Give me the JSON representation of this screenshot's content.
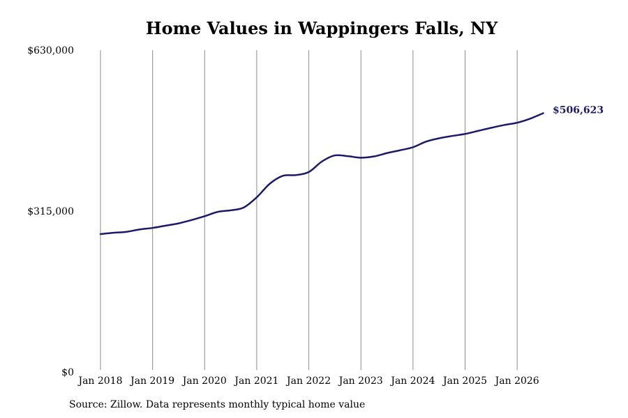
{
  "chart_data": {
    "type": "line",
    "title": "Home Values in Wappingers Falls, NY",
    "source": "Source: Zillow. Data represents monthly typical home value",
    "xlabel": "",
    "ylabel": "",
    "ylim": [
      0,
      630000
    ],
    "xlim": [
      "2018-01",
      "2026-07"
    ],
    "y_ticks": [
      {
        "value": 0,
        "label": "$0"
      },
      {
        "value": 315000,
        "label": "$315,000"
      },
      {
        "value": 630000,
        "label": "$630,000"
      }
    ],
    "x_ticks": [
      {
        "value": "2018-01",
        "label": "Jan 2018"
      },
      {
        "value": "2019-01",
        "label": "Jan 2019"
      },
      {
        "value": "2020-01",
        "label": "Jan 2020"
      },
      {
        "value": "2021-01",
        "label": "Jan 2021"
      },
      {
        "value": "2022-01",
        "label": "Jan 2022"
      },
      {
        "value": "2023-01",
        "label": "Jan 2023"
      },
      {
        "value": "2024-01",
        "label": "Jan 2024"
      },
      {
        "value": "2025-01",
        "label": "Jan 2025"
      },
      {
        "value": "2026-01",
        "label": "Jan 2026"
      }
    ],
    "grid": {
      "vertical": true,
      "horizontal": false
    },
    "colors": {
      "line": "#1a1a6b",
      "grid": "#8c8c8c",
      "end_label": "#1a1a6b"
    },
    "series": [
      {
        "x": [
          "2018-01",
          "2018-04",
          "2018-07",
          "2018-10",
          "2019-01",
          "2019-04",
          "2019-07",
          "2019-10",
          "2020-01",
          "2020-04",
          "2020-07",
          "2020-10",
          "2021-01",
          "2021-04",
          "2021-07",
          "2021-10",
          "2022-01",
          "2022-04",
          "2022-07",
          "2022-10",
          "2023-01",
          "2023-04",
          "2023-07",
          "2023-10",
          "2024-01",
          "2024-04",
          "2024-07",
          "2024-10",
          "2025-01",
          "2025-04",
          "2025-07",
          "2025-10",
          "2026-01",
          "2026-04",
          "2026-07"
        ],
        "values": [
          270000,
          272500,
          274500,
          279000,
          282000,
          286500,
          291000,
          297500,
          305000,
          313500,
          316500,
          322000,
          342000,
          368500,
          384000,
          385500,
          391500,
          412000,
          424000,
          422500,
          419500,
          422000,
          428500,
          434000,
          440000,
          451000,
          457500,
          462000,
          466000,
          472000,
          478000,
          483500,
          488000,
          496000,
          506623
        ]
      }
    ],
    "end_label": "$506,623"
  }
}
